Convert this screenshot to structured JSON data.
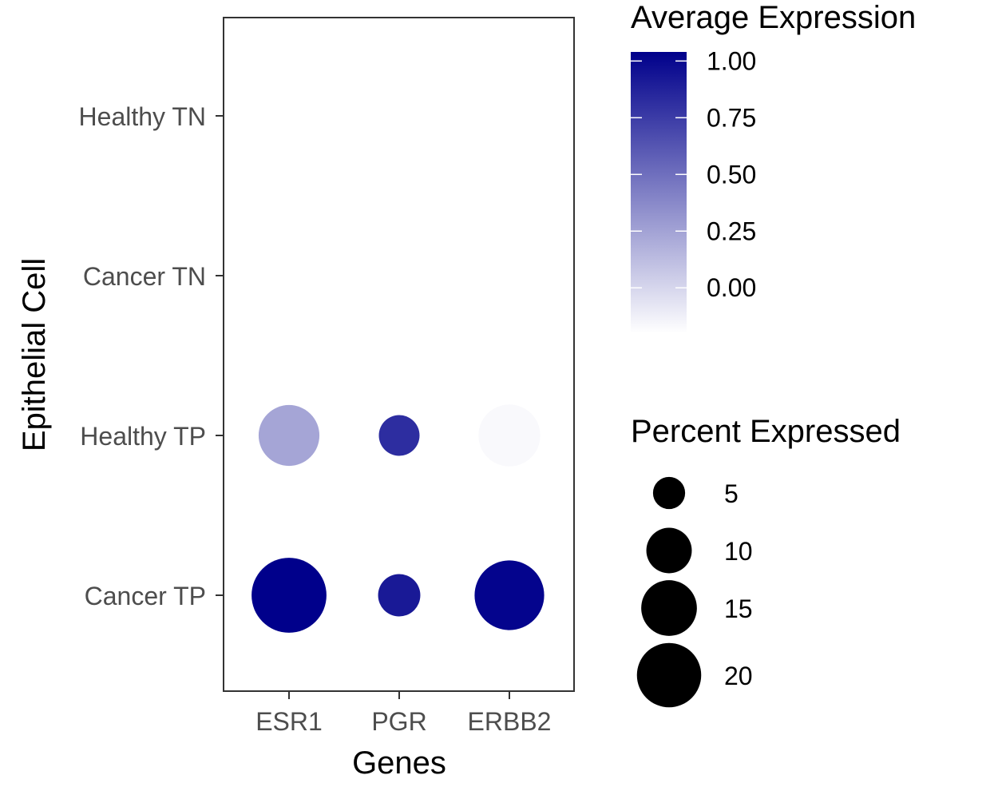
{
  "chart_data": {
    "type": "dotplot",
    "title": "",
    "xlabel": "Genes",
    "ylabel": "Epithelial Cell",
    "categories_x": [
      "ESR1",
      "PGR",
      "ERBB2"
    ],
    "categories_y": [
      "Healthy TN",
      "Cancer TN",
      "Healthy TP",
      "Cancer TP"
    ],
    "grid": false,
    "points": [
      {
        "gene": "ESR1",
        "cell": "Healthy TP",
        "avg_expression": 0.24,
        "pct_expressed": 14.5
      },
      {
        "gene": "PGR",
        "cell": "Healthy TP",
        "avg_expression": 0.82,
        "pct_expressed": 6.5
      },
      {
        "gene": "ERBB2",
        "cell": "Healthy TP",
        "avg_expression": -0.17,
        "pct_expressed": 15.0
      },
      {
        "gene": "ESR1",
        "cell": "Cancer TP",
        "avg_expression": 1.04,
        "pct_expressed": 22.0
      },
      {
        "gene": "PGR",
        "cell": "Cancer TP",
        "avg_expression": 0.92,
        "pct_expressed": 7.0
      },
      {
        "gene": "ERBB2",
        "cell": "Cancer TP",
        "avg_expression": 1.02,
        "pct_expressed": 19.0
      }
    ],
    "color_legend": {
      "title": "Average Expression",
      "range": [
        -0.2,
        1.04
      ],
      "low_color": "#ffffff",
      "high_color": "#00008b",
      "ticks": [
        "1.00",
        "0.75",
        "0.50",
        "0.25",
        "0.00"
      ],
      "tick_values": [
        1.0,
        0.75,
        0.5,
        0.25,
        0.0
      ]
    },
    "size_legend": {
      "title": "Percent Expressed",
      "labels": [
        "5",
        "10",
        "15",
        "20"
      ],
      "values": [
        5,
        10,
        15,
        20
      ]
    }
  }
}
